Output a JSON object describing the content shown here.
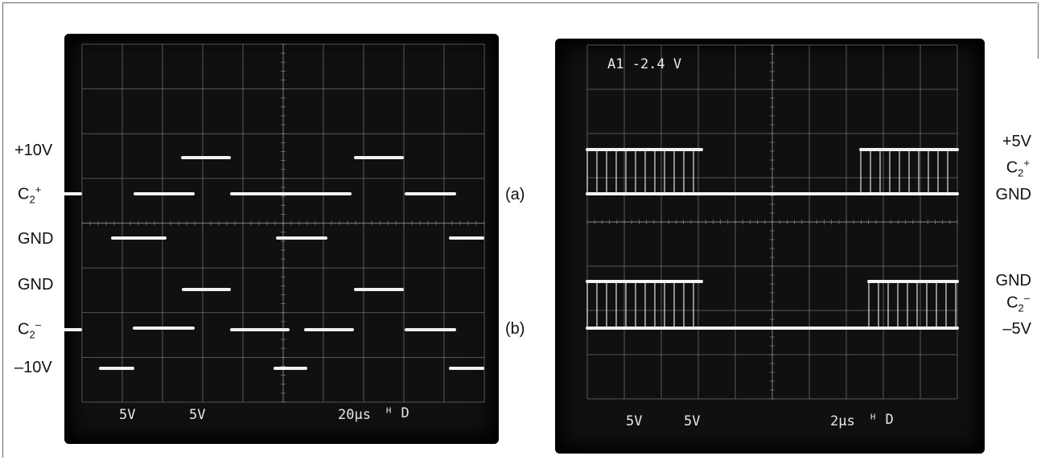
{
  "colors": {
    "trace": "#f2f2f2",
    "grid": "#8a8a8a",
    "screen": "#101010"
  },
  "scope_a": {
    "readouts": {
      "ch1": "5V",
      "ch2": "5V",
      "timebase": "20µs",
      "mode": "ᴴ D"
    },
    "side_labels": {
      "plus10": "+10V",
      "c2plus_base": "C",
      "c2plus_sub": "2",
      "c2plus_sup": "+",
      "gnd_top": "GND",
      "gnd_bottom": "GND",
      "c2minus_base": "C",
      "c2minus_sub": "2",
      "c2minus_sup": "–",
      "minus10": "–10V"
    }
  },
  "tags": {
    "a": "(a)",
    "b": "(b)"
  },
  "scope_b": {
    "readouts": {
      "top": "A1   -2.4 V",
      "ch1": "5V",
      "ch2": "5V",
      "timebase": "2µs",
      "mode": "ᴴ D"
    },
    "side_labels": {
      "plus5": "+5V",
      "c2plus_base": "C",
      "c2plus_sub": "2",
      "c2plus_sup": "+",
      "gnd_top": "GND",
      "gnd_bottom": "GND",
      "c2minus_base": "C",
      "c2minus_sub": "2",
      "c2minus_sup": "–",
      "minus5": "–5V"
    }
  }
}
